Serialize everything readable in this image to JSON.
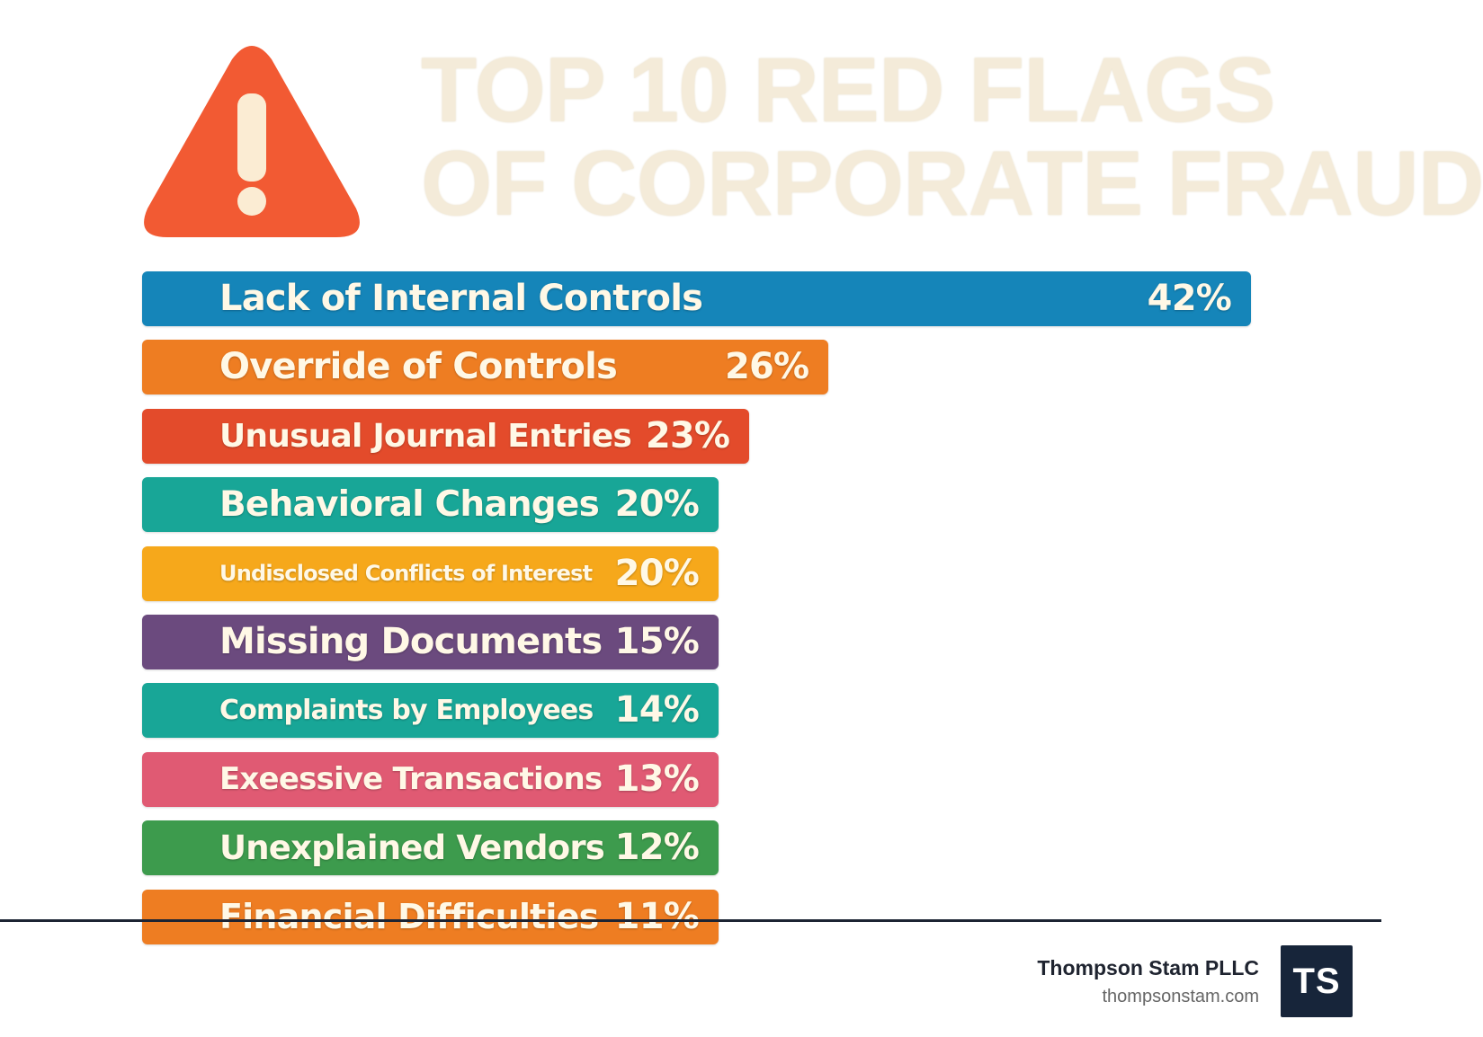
{
  "chart_data": {
    "type": "bar",
    "orientation": "horizontal",
    "title": "TOP 10 RED FLAGS OF CORPORATE FRAUD",
    "title_lines": [
      "TOP 10 RED FLAGS",
      "OF CORPORATE FRAUD"
    ],
    "categories": [
      "Lack of Internal Controls",
      "Override of Controls",
      "Unusual Journal Entries",
      "Behavioral Changes",
      "Undisclosed Conflicts of Interest",
      "Missing Documents",
      "Complaints by Employees",
      "Exeessive Transactions",
      "Unexplained Vendors",
      "Financial Difficulties"
    ],
    "values": [
      42,
      26,
      23,
      20,
      20,
      15,
      14,
      13,
      12,
      11
    ],
    "value_labels": [
      "42%",
      "26%",
      "23%",
      "20%",
      "20%",
      "15%",
      "14%",
      "13%",
      "12%",
      "11%"
    ],
    "colors": [
      "#1585b9",
      "#ee7d22",
      "#e34b2b",
      "#18a697",
      "#f6a81b",
      "#6b4a7e",
      "#18a697",
      "#e05a73",
      "#3d9b4d",
      "#ee7d22"
    ],
    "xlabel": "",
    "ylabel": "",
    "grid": false,
    "legend": "none"
  },
  "footer": {
    "company": "Thompson Stam PLLC",
    "url": "thompsonstam.com",
    "logo_text": "TS"
  },
  "warning_icon": {
    "name": "warning-icon",
    "color": "#f25a33",
    "mark_color": "#fbecd3"
  }
}
